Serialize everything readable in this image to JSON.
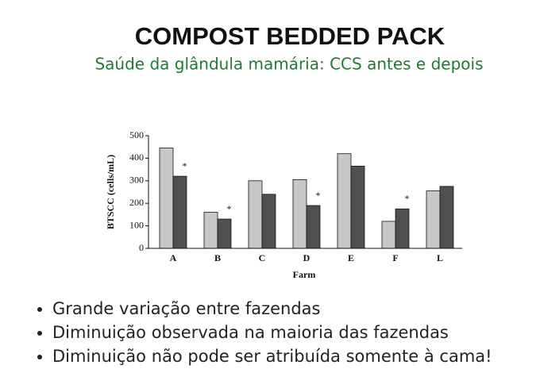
{
  "slide": {
    "title": "COMPOST BEDDED PACK",
    "subtitle": "Saúde da glândula mamária: CCS antes e depois",
    "bullets": [
      "Grande variação entre fazendas",
      "Diminuição observada na maioria das fazendas",
      "Diminuição não pode ser atribuída somente à cama!"
    ]
  },
  "chart_data": {
    "type": "bar",
    "x_label": "Farm",
    "y_label": "BTSCC (cells/mL)",
    "categories": [
      "A",
      "B",
      "C",
      "D",
      "E",
      "F",
      "L"
    ],
    "series": [
      {
        "color": "#c8c8c8",
        "values": [
          445,
          160,
          300,
          305,
          420,
          120,
          255
        ]
      },
      {
        "color": "#505050",
        "values": [
          320,
          130,
          240,
          190,
          365,
          175,
          275
        ]
      }
    ],
    "significance_labels": [
      "*",
      "*",
      null,
      "*",
      null,
      "*",
      null
    ],
    "ylim": [
      0,
      500
    ],
    "yticks": [
      0,
      100,
      200,
      300,
      400,
      500
    ]
  }
}
